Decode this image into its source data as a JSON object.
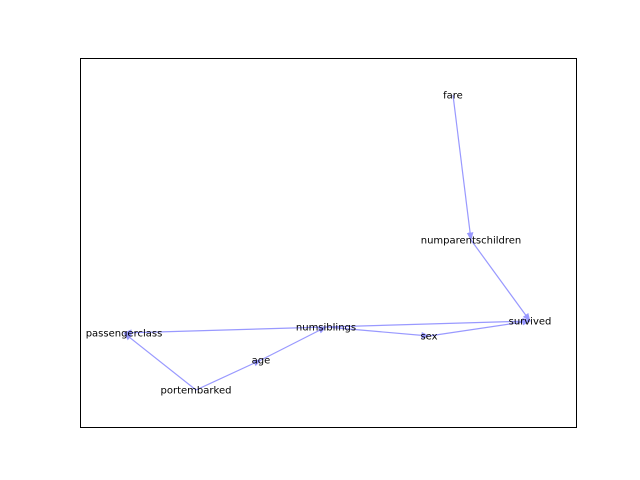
{
  "graph": {
    "edge_color": "#9999ff",
    "nodes": [
      {
        "id": "fare",
        "label": "fare"
      },
      {
        "id": "numparentschildren",
        "label": "numparentschildren"
      },
      {
        "id": "survived",
        "label": "survived"
      },
      {
        "id": "numsiblings",
        "label": "numsiblings"
      },
      {
        "id": "sex",
        "label": "sex"
      },
      {
        "id": "passengerclass",
        "label": "passengerclass"
      },
      {
        "id": "age",
        "label": "age"
      },
      {
        "id": "portembarked",
        "label": "portembarked"
      }
    ],
    "edges": [
      {
        "from": "fare",
        "to": "numparentschildren"
      },
      {
        "from": "numparentschildren",
        "to": "survived"
      },
      {
        "from": "numsiblings",
        "to": "survived"
      },
      {
        "from": "numsiblings",
        "to": "sex"
      },
      {
        "from": "sex",
        "to": "survived"
      },
      {
        "from": "numsiblings",
        "to": "passengerclass"
      },
      {
        "from": "portembarked",
        "to": "passengerclass"
      },
      {
        "from": "portembarked",
        "to": "age"
      },
      {
        "from": "age",
        "to": "numsiblings"
      }
    ]
  }
}
